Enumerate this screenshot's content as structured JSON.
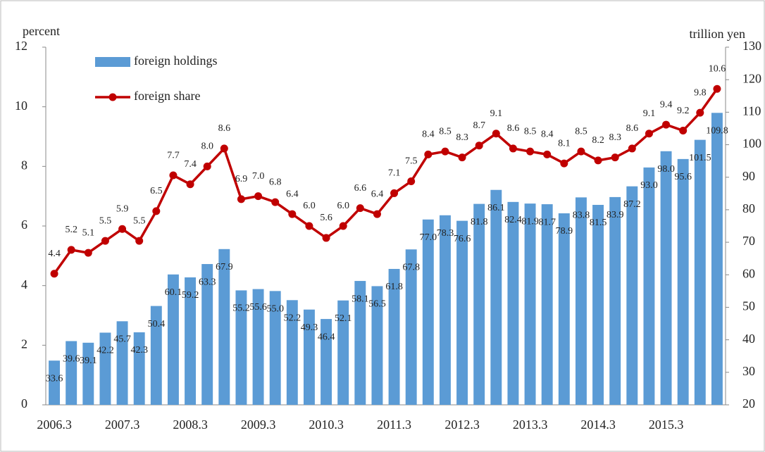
{
  "chart_data": {
    "type": "bar-line",
    "y_label": "percent",
    "y2_label": "trillion yen",
    "categories": [
      "2006.3",
      null,
      null,
      null,
      "2007.3",
      null,
      null,
      null,
      "2008.3",
      null,
      null,
      null,
      "2009.3",
      null,
      null,
      null,
      "2010.3",
      null,
      null,
      null,
      "2011.3",
      null,
      null,
      null,
      "2012.3",
      null,
      null,
      null,
      "2013.3",
      null,
      null,
      null,
      "2014.3",
      null,
      null,
      null,
      "2015.3",
      null,
      null,
      null
    ],
    "ylim": [
      0,
      12
    ],
    "yticks": [
      0,
      2,
      4,
      6,
      8,
      10,
      12
    ],
    "y2lim": [
      20,
      130
    ],
    "y2ticks": [
      20,
      30,
      40,
      50,
      60,
      70,
      80,
      90,
      100,
      110,
      120,
      130
    ],
    "legend": "top-left",
    "series": [
      {
        "name": "foreign holdings",
        "type": "bar",
        "axis": "y2",
        "color": "#5b9bd5",
        "values": [
          33.6,
          39.6,
          39.1,
          42.2,
          45.7,
          42.3,
          50.4,
          60.1,
          59.2,
          63.3,
          67.9,
          55.2,
          55.6,
          55.0,
          52.2,
          49.3,
          46.4,
          52.1,
          58.1,
          56.5,
          61.8,
          67.8,
          77.0,
          78.3,
          76.6,
          81.8,
          86.1,
          82.4,
          81.9,
          81.7,
          78.9,
          83.8,
          81.5,
          83.9,
          87.2,
          93.0,
          98.0,
          95.6,
          101.5,
          109.8
        ],
        "value_labels": [
          "33.6",
          "39.6",
          "39.1",
          "42.2",
          "45.7",
          "42.3",
          "50.4",
          "60.1",
          "59.2",
          "63.3",
          "67.9",
          "55.2",
          "55.6",
          "55.0",
          "52.2",
          "49.3",
          "46.4",
          "52.1",
          "58.1",
          "56.5",
          "61.8",
          "67.8",
          "77.0",
          "78.3",
          "76.6",
          "81.8",
          "86.1",
          "82.4",
          "81.9",
          "81.7",
          "78.9",
          "83.8",
          "81.5",
          "83.9",
          "87.2",
          "93.0",
          "98.0",
          "95.6",
          "101.5",
          "109.8"
        ]
      },
      {
        "name": "foreign share",
        "type": "line",
        "color": "#c00000",
        "values": [
          4.4,
          5.2,
          5.1,
          5.5,
          5.9,
          5.5,
          6.5,
          7.7,
          7.4,
          8.0,
          8.6,
          6.9,
          7.0,
          6.8,
          6.4,
          6.0,
          5.6,
          6.0,
          6.6,
          6.4,
          7.1,
          7.5,
          8.4,
          8.5,
          8.3,
          8.7,
          9.1,
          8.6,
          8.5,
          8.4,
          8.1,
          8.5,
          8.2,
          8.3,
          8.6,
          9.1,
          9.4,
          9.2,
          9.8,
          10.6
        ],
        "value_labels": [
          "4.4",
          "5.2",
          "5.1",
          "5.5",
          "5.9",
          "5.5",
          "6.5",
          "7.7",
          "7.4",
          "8.0",
          "8.6",
          "6.9",
          "7.0",
          "6.8",
          "6.4",
          "6.0",
          "5.6",
          "6.0",
          "6.6",
          "6.4",
          "7.1",
          "7.5",
          "8.4",
          "8.5",
          "8.3",
          "8.7",
          "9.1",
          "8.6",
          "8.5",
          "8.4",
          "8.1",
          "8.5",
          "8.2",
          "8.3",
          "8.6",
          "9.1",
          "9.4",
          "9.2",
          "9.8",
          "10.6"
        ]
      }
    ]
  }
}
